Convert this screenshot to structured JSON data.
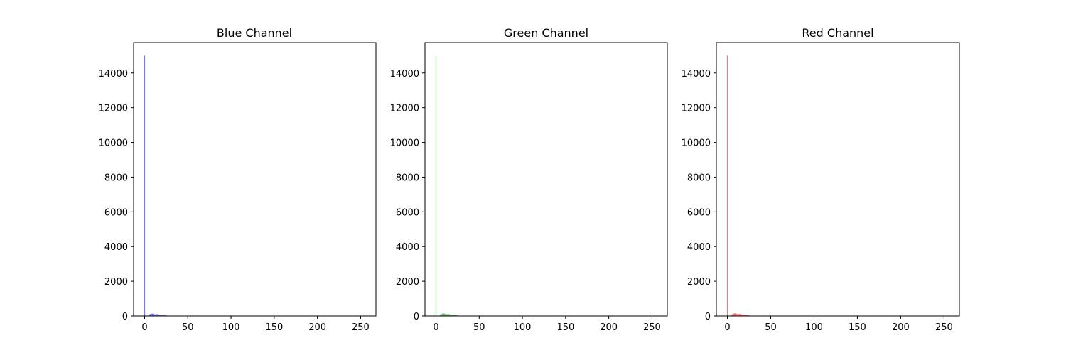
{
  "chart_data": [
    {
      "type": "bar",
      "title": "Blue Channel",
      "color": "#0000ff",
      "xlabel": "",
      "ylabel": "",
      "xlim": [
        -12.75,
        267.75
      ],
      "ylim": [
        0,
        15750
      ],
      "x_ticks": [
        0,
        50,
        100,
        150,
        200,
        250
      ],
      "y_ticks": [
        0,
        2000,
        4000,
        6000,
        8000,
        10000,
        12000,
        14000
      ],
      "grid": false,
      "bins": [
        0,
        1,
        2,
        3,
        4,
        5,
        6,
        7,
        8,
        9,
        10,
        11,
        12,
        13,
        14,
        15,
        16,
        17,
        18,
        19,
        20,
        21,
        22,
        23,
        24,
        25,
        26,
        27,
        28
      ],
      "values": [
        15000,
        0,
        0,
        0,
        0,
        60,
        90,
        120,
        130,
        140,
        120,
        100,
        90,
        95,
        100,
        110,
        85,
        70,
        60,
        55,
        45,
        40,
        35,
        40,
        45,
        30,
        25,
        20,
        15
      ]
    },
    {
      "type": "bar",
      "title": "Green Channel",
      "color": "#008000",
      "xlabel": "",
      "ylabel": "",
      "xlim": [
        -12.75,
        267.75
      ],
      "ylim": [
        0,
        15750
      ],
      "x_ticks": [
        0,
        50,
        100,
        150,
        200,
        250
      ],
      "y_ticks": [
        0,
        2000,
        4000,
        6000,
        8000,
        10000,
        12000,
        14000
      ],
      "grid": false,
      "bins": [
        0,
        1,
        2,
        3,
        4,
        5,
        6,
        7,
        8,
        9,
        10,
        11,
        12,
        13,
        14,
        15,
        16,
        17,
        18,
        19,
        20,
        21,
        22,
        23,
        24,
        25,
        26,
        27,
        28
      ],
      "values": [
        15000,
        0,
        0,
        0,
        0,
        60,
        100,
        130,
        140,
        150,
        130,
        110,
        95,
        100,
        105,
        110,
        90,
        75,
        65,
        55,
        50,
        45,
        40,
        45,
        40,
        30,
        25,
        20,
        15
      ]
    },
    {
      "type": "bar",
      "title": "Red Channel",
      "color": "#ff0000",
      "xlabel": "",
      "ylabel": "",
      "xlim": [
        -12.75,
        267.75
      ],
      "ylim": [
        0,
        15750
      ],
      "x_ticks": [
        0,
        50,
        100,
        150,
        200,
        250
      ],
      "y_ticks": [
        0,
        2000,
        4000,
        6000,
        8000,
        10000,
        12000,
        14000
      ],
      "grid": false,
      "bins": [
        0,
        1,
        2,
        3,
        4,
        5,
        6,
        7,
        8,
        9,
        10,
        11,
        12,
        13,
        14,
        15,
        16,
        17,
        18,
        19,
        20,
        21,
        22,
        23,
        24,
        25,
        26,
        27,
        28
      ],
      "values": [
        15000,
        0,
        0,
        0,
        0,
        70,
        110,
        140,
        150,
        160,
        140,
        120,
        100,
        105,
        110,
        115,
        95,
        80,
        70,
        60,
        50,
        45,
        40,
        45,
        40,
        30,
        25,
        20,
        15
      ]
    }
  ]
}
